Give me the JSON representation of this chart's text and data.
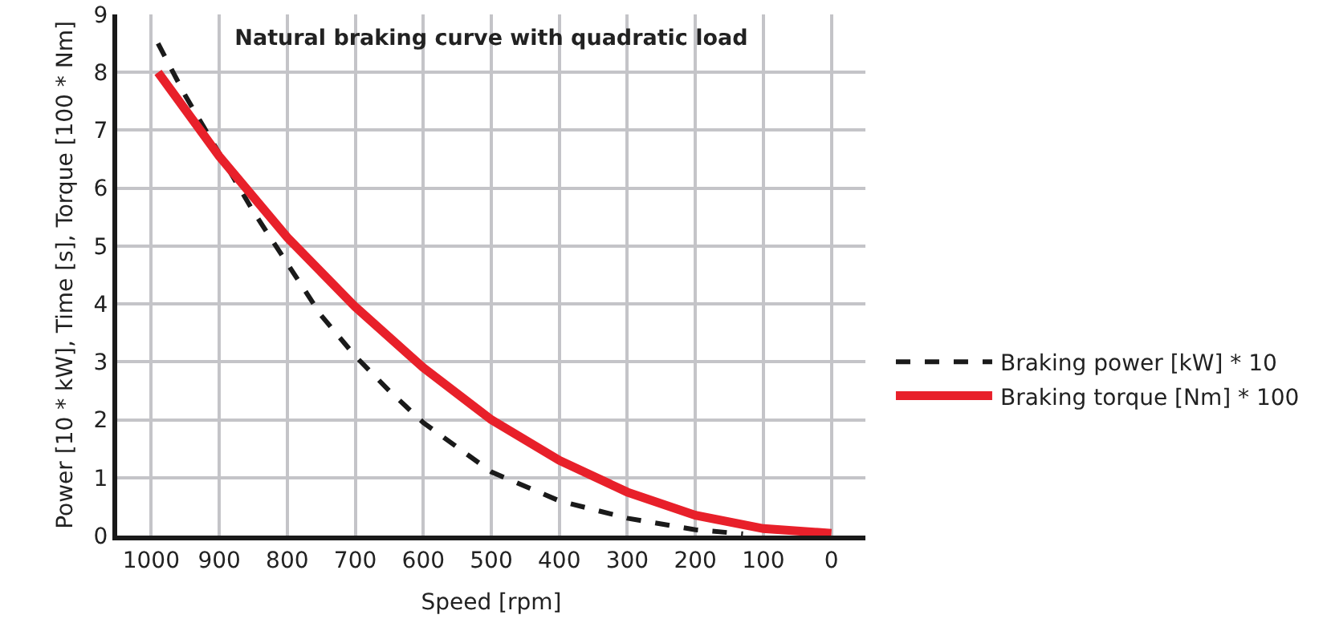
{
  "chart_data": {
    "type": "line",
    "title": "Natural braking curve with quadratic load",
    "xlabel": "Speed [rpm]",
    "ylabel": "Power [10 * kW], Time [s], Torque [100 * Nm]",
    "xlim": [
      1050,
      -50
    ],
    "xticks": [
      1000,
      900,
      800,
      700,
      600,
      500,
      400,
      300,
      200,
      100,
      0
    ],
    "ylim": [
      0,
      9
    ],
    "yticks": [
      0,
      1,
      2,
      3,
      4,
      5,
      6,
      7,
      8,
      9
    ],
    "grid": true,
    "legend": "right",
    "marker": "none",
    "series": [
      {
        "name": "Braking power [kW] * 10",
        "color": "#1a1a1a",
        "line_style": "dashed",
        "x": [
          990,
          950,
          900,
          850,
          800,
          750,
          700,
          650,
          600,
          500,
          400,
          300,
          200,
          130
        ],
        "values": [
          8.5,
          7.6,
          6.6,
          5.6,
          4.7,
          3.8,
          3.1,
          2.5,
          1.95,
          1.1,
          0.6,
          0.3,
          0.1,
          0.03
        ]
      },
      {
        "name": "Braking torque [Nm] * 100",
        "color": "#e8202a",
        "line_style": "solid",
        "x": [
          990,
          900,
          800,
          700,
          600,
          500,
          400,
          300,
          200,
          100,
          0
        ],
        "values": [
          8.0,
          6.55,
          5.15,
          3.95,
          2.9,
          2.0,
          1.3,
          0.75,
          0.35,
          0.12,
          0.04
        ]
      }
    ]
  }
}
